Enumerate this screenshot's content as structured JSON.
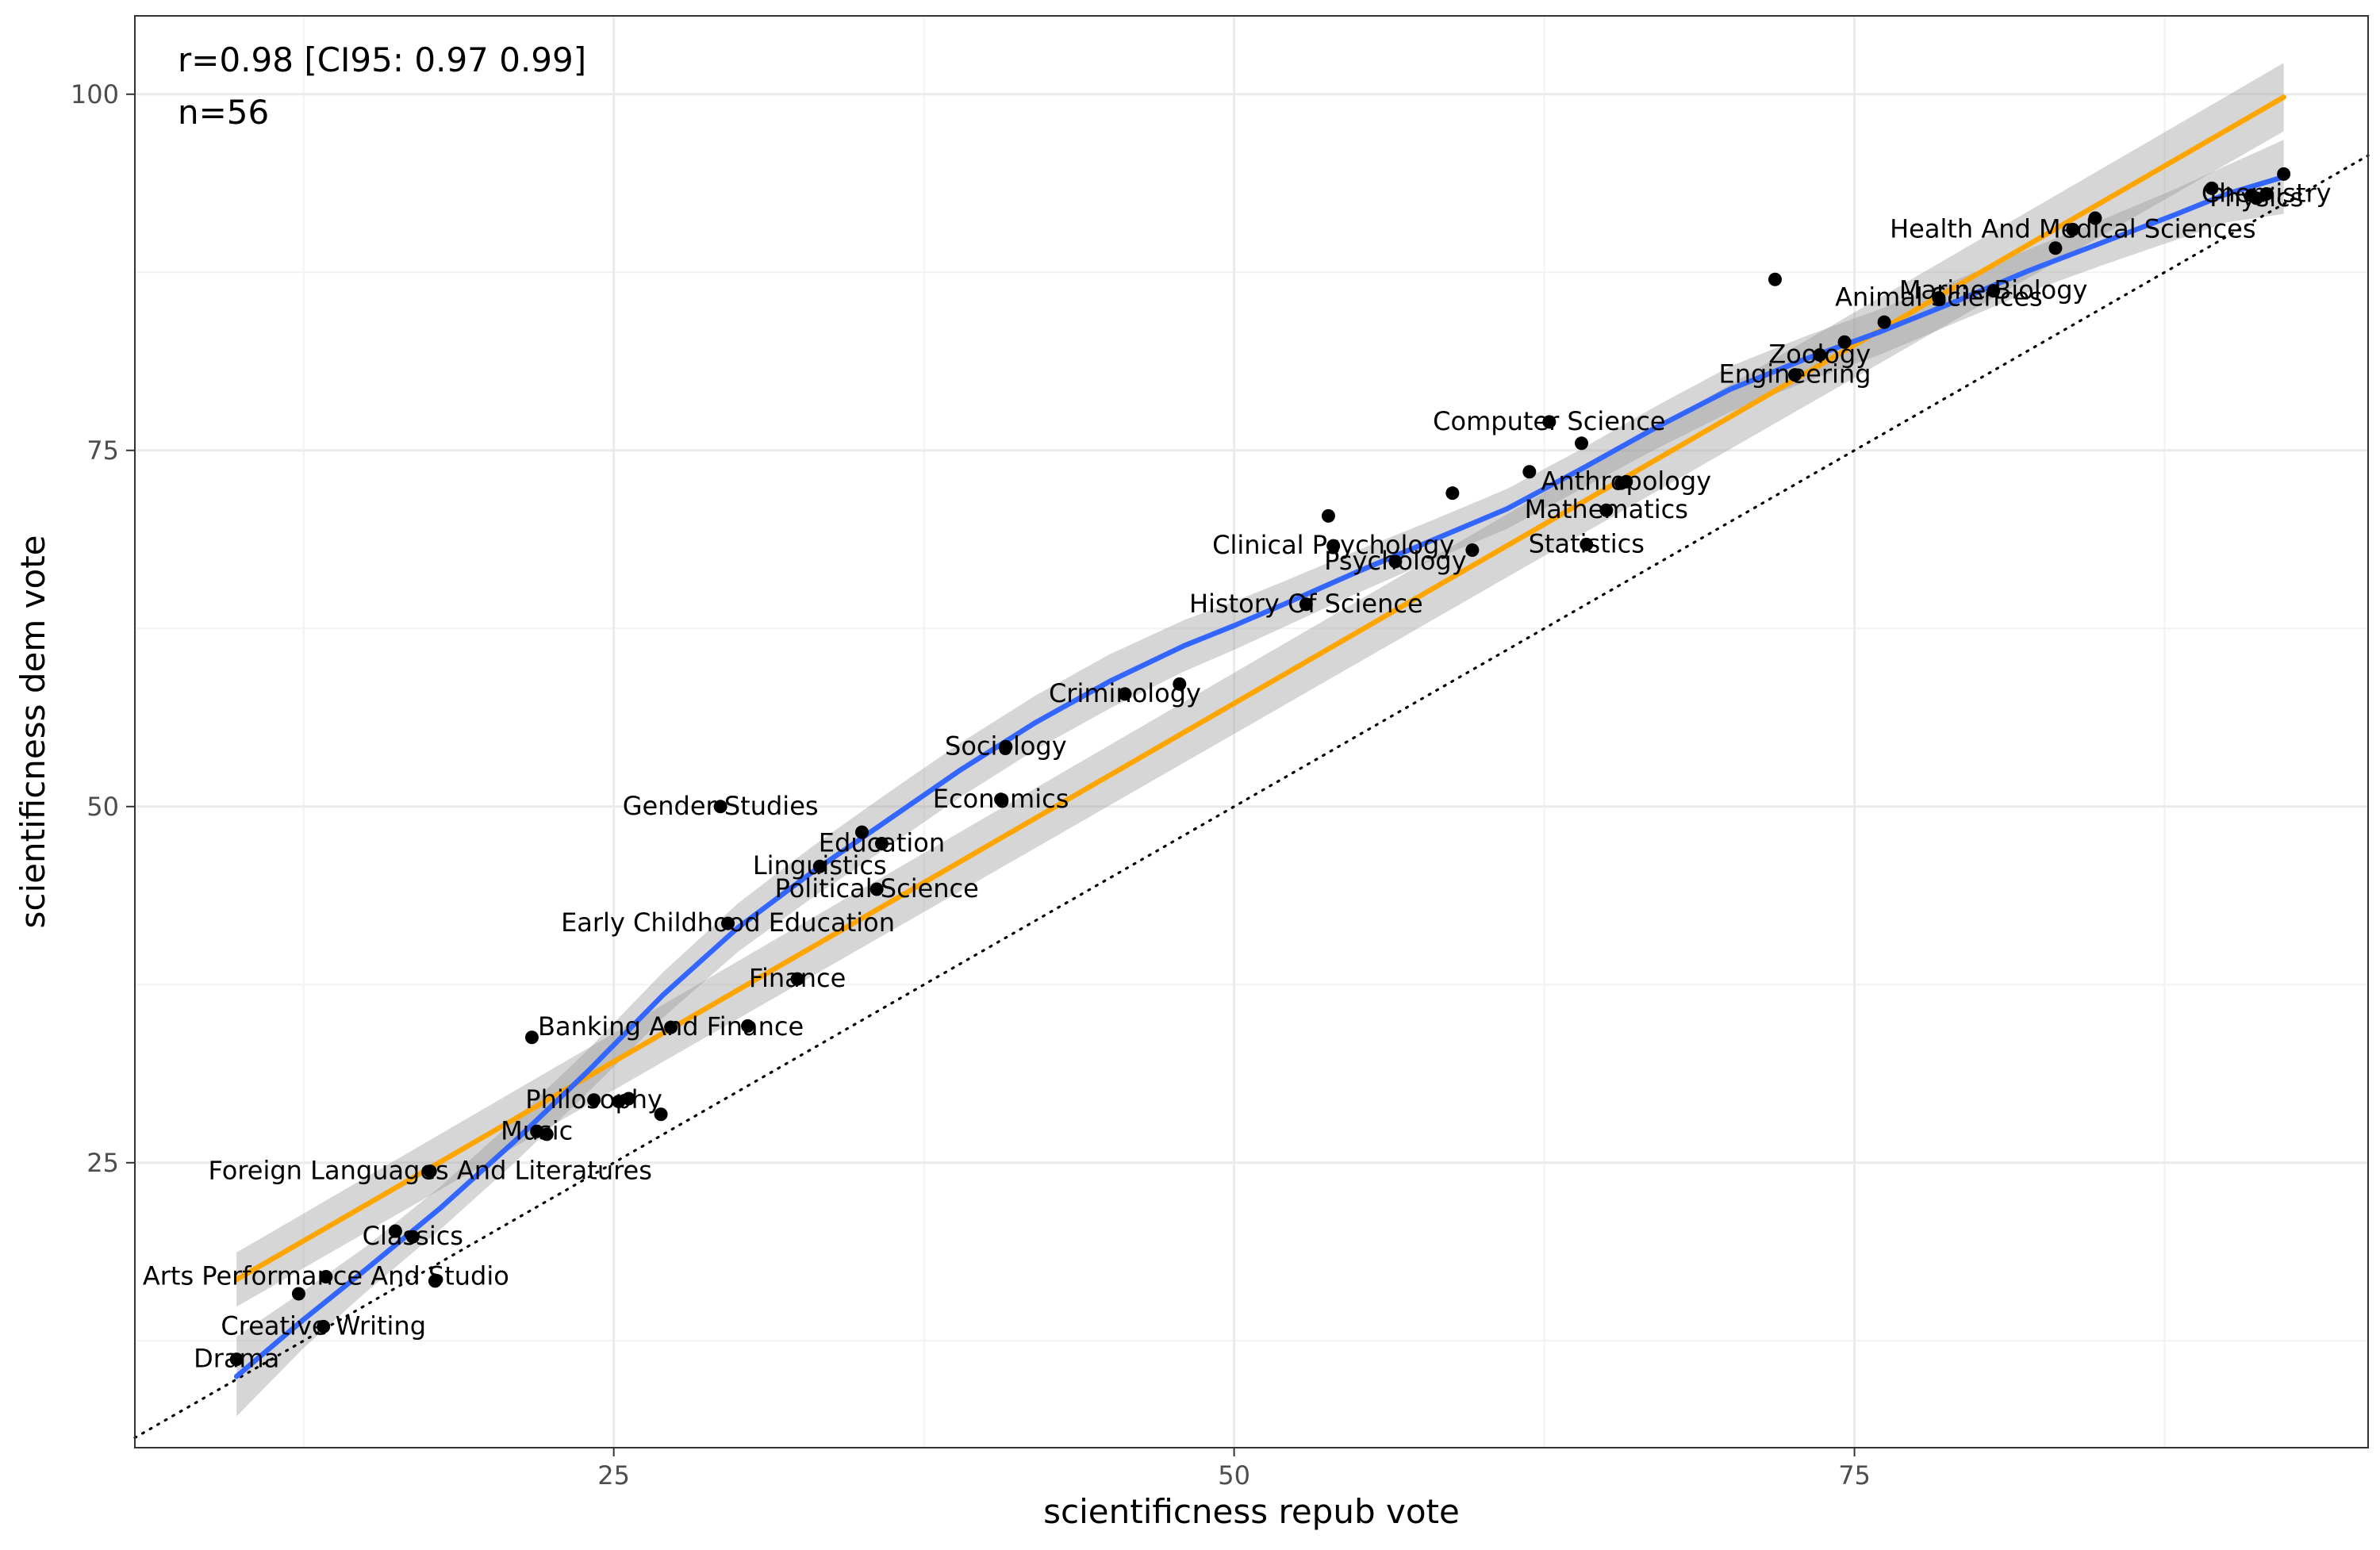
{
  "chart_data": {
    "type": "scatter",
    "title": "",
    "xlabel": "scientificness repub vote",
    "ylabel": "scientificness dem vote",
    "xlim": [
      5.7,
      95.7
    ],
    "ylim": [
      5.0,
      105.5
    ],
    "xticks": [
      25,
      50,
      75
    ],
    "yticks": [
      25,
      50,
      75,
      100
    ],
    "grid": true,
    "annotations": [
      "r=0.98 [CI95: 0.97 0.99]",
      "n=56"
    ],
    "reference_line": {
      "type": "identity",
      "style": "dotted"
    },
    "series": [
      {
        "kind": "linear_fit",
        "color": "#FFA500",
        "x": [
          9.8,
          92.3
        ],
        "y": [
          16.8,
          99.8
        ],
        "ci_halfwidth": [
          1.9,
          2.4
        ]
      },
      {
        "kind": "loess_fit",
        "color": "#3366FF",
        "x": [
          9.8,
          12.5,
          15,
          18,
          21,
          24,
          27,
          30,
          33,
          36,
          39,
          42,
          45,
          48,
          50,
          52,
          55,
          58,
          61,
          64,
          67,
          70,
          73,
          76,
          79,
          82,
          85,
          88,
          90,
          92.3
        ],
        "y": [
          10.0,
          14.0,
          17.5,
          21.8,
          26.5,
          31.5,
          36.8,
          41.5,
          45.4,
          49.0,
          52.6,
          55.9,
          58.8,
          61.3,
          62.7,
          64.2,
          66.5,
          68.7,
          70.9,
          73.7,
          76.6,
          79.3,
          81.4,
          83.3,
          85.4,
          87.6,
          89.6,
          91.6,
          93.0,
          94.2
        ],
        "ci_halfwidth": [
          2.8,
          2.0,
          1.6,
          1.5,
          1.5,
          1.5,
          1.6,
          1.7,
          1.8,
          1.9,
          1.9,
          1.9,
          1.9,
          1.8,
          1.7,
          1.6,
          1.5,
          1.4,
          1.4,
          1.4,
          1.5,
          1.6,
          1.6,
          1.6,
          1.5,
          1.5,
          1.6,
          1.8,
          2.0,
          2.6
        ]
      }
    ],
    "points": [
      {
        "x": 9.8,
        "y": 11.2,
        "label": "Drama"
      },
      {
        "x": 12.3,
        "y": 15.8,
        "label": ""
      },
      {
        "x": 13.3,
        "y": 13.5,
        "label": "Creative Writing"
      },
      {
        "x": 13.4,
        "y": 17.0,
        "label": "Arts Performance And Studio"
      },
      {
        "x": 16.2,
        "y": 20.2,
        "label": ""
      },
      {
        "x": 16.9,
        "y": 19.8,
        "label": "Classics"
      },
      {
        "x": 17.6,
        "y": 24.4,
        "label": "Foreign Languages And Literatures"
      },
      {
        "x": 17.8,
        "y": 16.7,
        "label": ""
      },
      {
        "x": 21.7,
        "y": 33.8,
        "label": ""
      },
      {
        "x": 21.9,
        "y": 27.2,
        "label": "Music"
      },
      {
        "x": 22.3,
        "y": 27.0,
        "label": ""
      },
      {
        "x": 24.2,
        "y": 29.4,
        "label": "Philosophy"
      },
      {
        "x": 25.2,
        "y": 29.3,
        "label": ""
      },
      {
        "x": 25.6,
        "y": 29.5,
        "label": ""
      },
      {
        "x": 26.9,
        "y": 28.4,
        "label": ""
      },
      {
        "x": 27.3,
        "y": 34.5,
        "label": "Banking And Finance"
      },
      {
        "x": 29.3,
        "y": 50.0,
        "label": "Gender Studies"
      },
      {
        "x": 29.6,
        "y": 41.8,
        "label": "Early Childhood Education"
      },
      {
        "x": 30.4,
        "y": 34.6,
        "label": ""
      },
      {
        "x": 32.4,
        "y": 37.9,
        "label": "Finance"
      },
      {
        "x": 33.3,
        "y": 45.8,
        "label": "Linguistics"
      },
      {
        "x": 35.0,
        "y": 48.2,
        "label": ""
      },
      {
        "x": 35.6,
        "y": 44.2,
        "label": "Political Science"
      },
      {
        "x": 35.8,
        "y": 47.4,
        "label": "Education"
      },
      {
        "x": 40.6,
        "y": 50.5,
        "label": "Economics"
      },
      {
        "x": 40.8,
        "y": 54.2,
        "label": "Sociology"
      },
      {
        "x": 45.6,
        "y": 57.9,
        "label": "Criminology"
      },
      {
        "x": 47.8,
        "y": 58.6,
        "label": ""
      },
      {
        "x": 52.9,
        "y": 64.2,
        "label": "History Of Science"
      },
      {
        "x": 53.8,
        "y": 70.4,
        "label": ""
      },
      {
        "x": 54.0,
        "y": 68.3,
        "label": "Clinical Psychology"
      },
      {
        "x": 56.5,
        "y": 67.2,
        "label": "Psychology"
      },
      {
        "x": 58.8,
        "y": 72.0,
        "label": ""
      },
      {
        "x": 59.6,
        "y": 68.0,
        "label": ""
      },
      {
        "x": 61.9,
        "y": 73.5,
        "label": ""
      },
      {
        "x": 62.7,
        "y": 77.0,
        "label": "Computer Science"
      },
      {
        "x": 64.0,
        "y": 75.5,
        "label": ""
      },
      {
        "x": 64.2,
        "y": 68.4,
        "label": "Statistics"
      },
      {
        "x": 65.0,
        "y": 70.8,
        "label": "Mathematics"
      },
      {
        "x": 65.8,
        "y": 72.8,
        "label": "Anthropology"
      },
      {
        "x": 65.6,
        "y": 72.7,
        "label": ""
      },
      {
        "x": 71.8,
        "y": 87.0,
        "label": ""
      },
      {
        "x": 72.6,
        "y": 80.3,
        "label": "Engineering"
      },
      {
        "x": 73.6,
        "y": 81.7,
        "label": "Zoology"
      },
      {
        "x": 74.6,
        "y": 82.6,
        "label": ""
      },
      {
        "x": 78.4,
        "y": 85.7,
        "label": "Animal Sciences"
      },
      {
        "x": 80.6,
        "y": 86.2,
        "label": "Marine Biology"
      },
      {
        "x": 83.8,
        "y": 90.5,
        "label": "Health And Medical Sciences"
      },
      {
        "x": 84.7,
        "y": 91.3,
        "label": ""
      },
      {
        "x": 83.1,
        "y": 89.2,
        "label": ""
      },
      {
        "x": 89.4,
        "y": 93.4,
        "label": ""
      },
      {
        "x": 91.2,
        "y": 92.7,
        "label": "Physics"
      },
      {
        "x": 91.6,
        "y": 93.0,
        "label": "Chemistry"
      },
      {
        "x": 91.0,
        "y": 92.9,
        "label": ""
      },
      {
        "x": 92.3,
        "y": 94.4,
        "label": ""
      },
      {
        "x": 76.2,
        "y": 84.0,
        "label": ""
      }
    ]
  }
}
